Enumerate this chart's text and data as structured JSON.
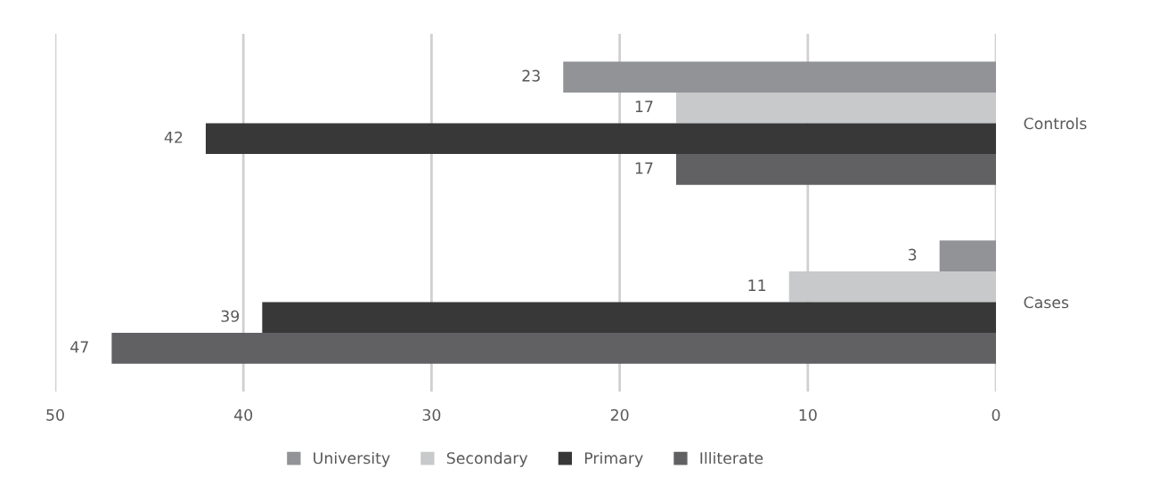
{
  "chart_data": {
    "type": "bar",
    "orientation": "horizontal",
    "categories": [
      "Controls",
      "Cases"
    ],
    "series": [
      {
        "name": "University",
        "color": "#929396",
        "values": [
          23,
          3
        ]
      },
      {
        "name": "Secondary",
        "color": "#c8c9ca",
        "values": [
          17,
          11
        ]
      },
      {
        "name": "Primary",
        "color": "#383838",
        "values": [
          42,
          39
        ]
      },
      {
        "name": "Illiterate",
        "color": "#616163",
        "values": [
          17,
          47
        ]
      }
    ],
    "xlim": [
      50,
      0
    ],
    "xticks": [
      50,
      40,
      30,
      20,
      10,
      0
    ],
    "grid": "x",
    "legend": "bottom",
    "data_labels": true
  }
}
